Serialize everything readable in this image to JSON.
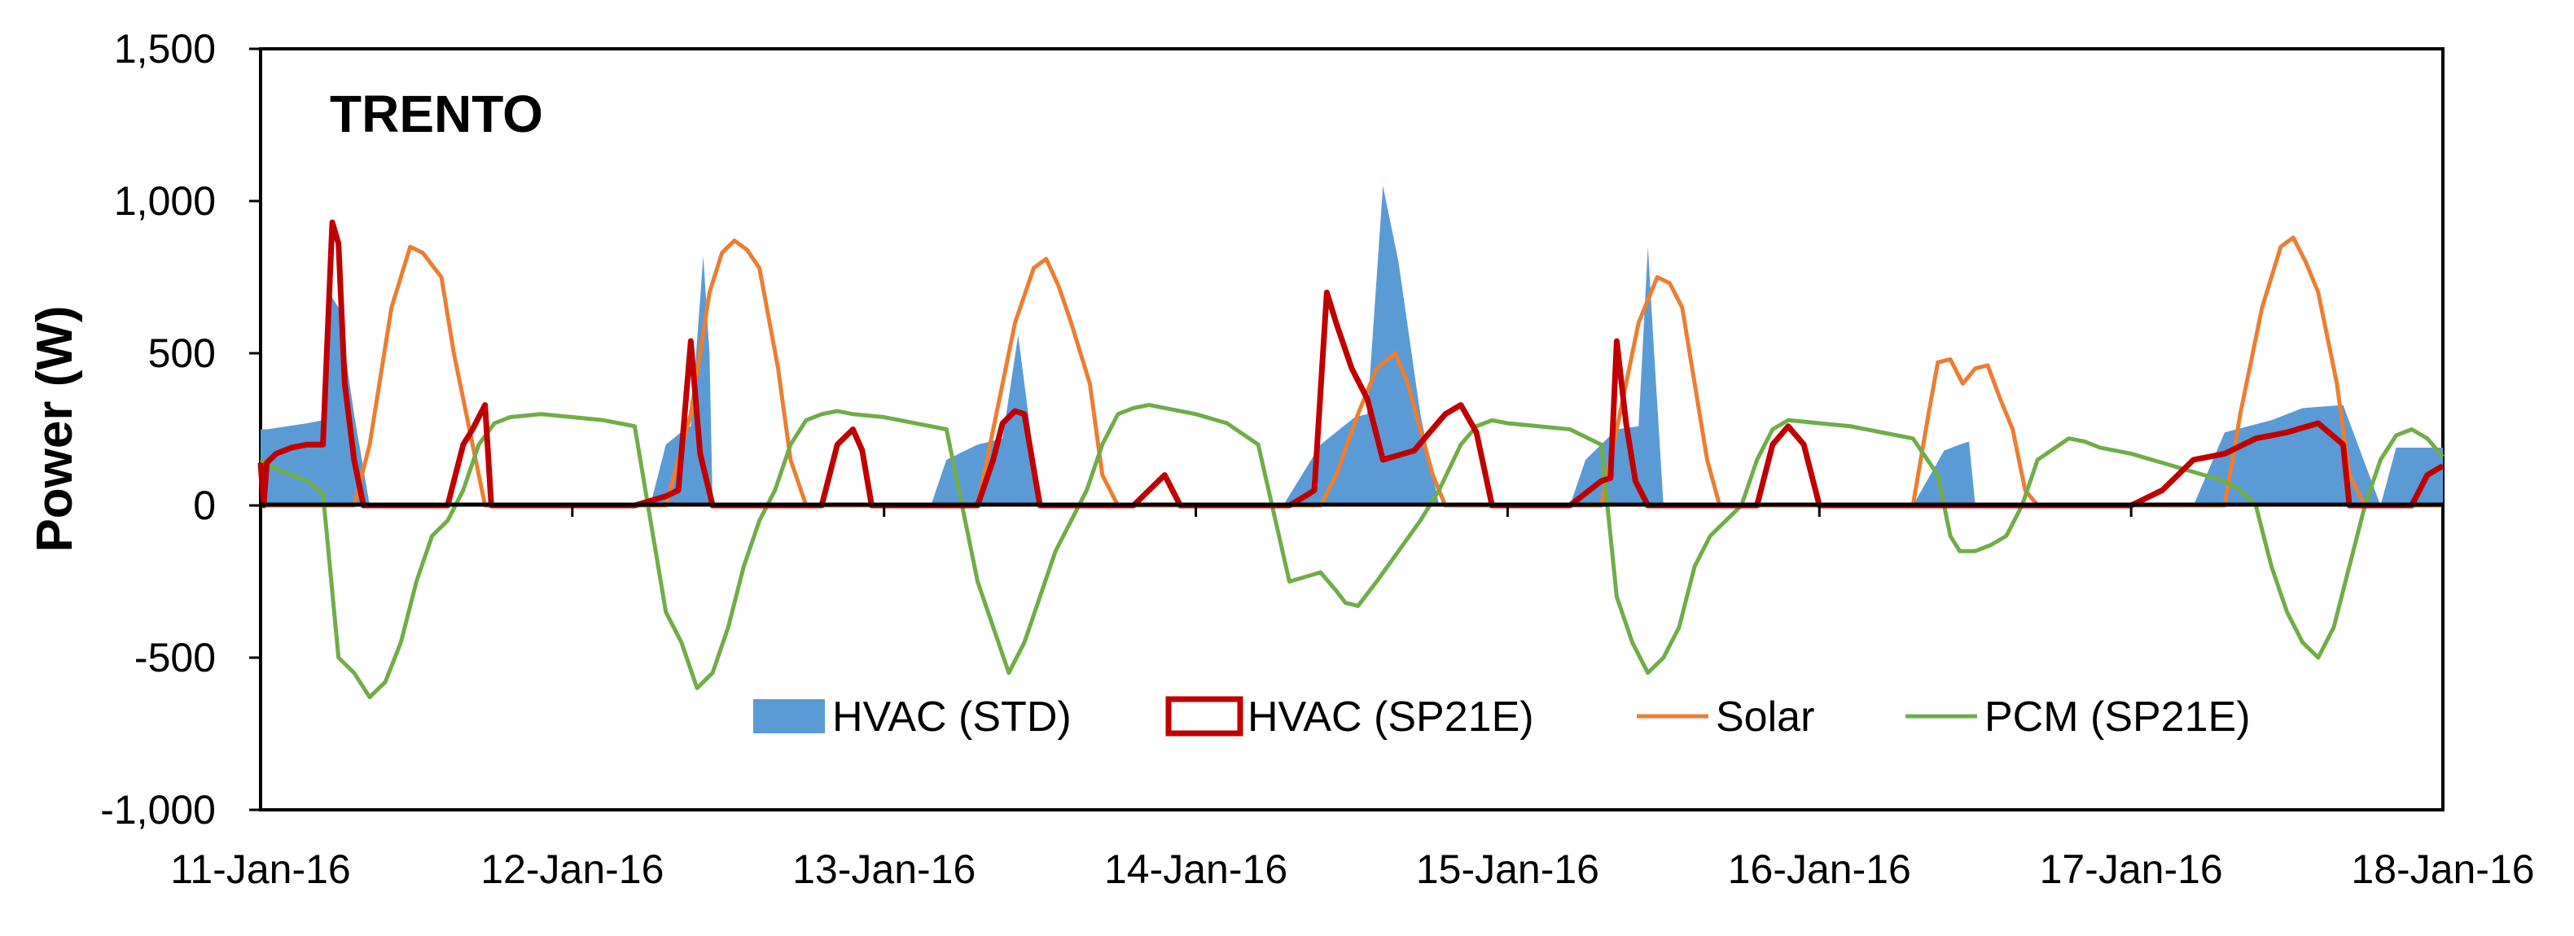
{
  "chart_data": {
    "type": "area+line",
    "title": "TRENTO",
    "xlabel": "",
    "ylabel": "Power (W)",
    "ylim": [
      -1000,
      1500
    ],
    "yticks": [
      -1000,
      -500,
      0,
      500,
      1000,
      1500
    ],
    "ytick_labels": [
      "-1,000",
      "-500",
      "0",
      "500",
      "1,000",
      "1,500"
    ],
    "xlim": [
      0,
      7
    ],
    "xticks": [
      0,
      1,
      2,
      3,
      4,
      5,
      6,
      7
    ],
    "xtick_labels": [
      "11-Jan-16",
      "12-Jan-16",
      "13-Jan-16",
      "14-Jan-16",
      "15-Jan-16",
      "16-Jan-16",
      "17-Jan-16",
      "18-Jan-16"
    ],
    "x_unit": "days since 11-Jan-16",
    "grid": false,
    "legend_position": "bottom-center",
    "colors": {
      "hvac_std_fill": "#5b9bd5",
      "hvac_std_light": "#a9cbe9",
      "hvac_sp21e": "#c00000",
      "solar": "#ed7d31",
      "pcm": "#70ad47",
      "zero_line": "#000000"
    },
    "series": [
      {
        "name": "HVAC (STD)",
        "style": "filled-area",
        "x": [
          0,
          0.02,
          0.15,
          0.2,
          0.22,
          0.25,
          0.3,
          0.35,
          0.42,
          0.44,
          0.46,
          0.8,
          1.08,
          1.25,
          1.3,
          1.36,
          1.38,
          1.42,
          1.44,
          1.45,
          1.5,
          1.78,
          1.82,
          2.05,
          2.15,
          2.2,
          2.3,
          2.38,
          2.43,
          2.5,
          2.8,
          3.02,
          3.2,
          3.28,
          3.4,
          3.51,
          3.55,
          3.6,
          3.65,
          3.72,
          3.78,
          3.8,
          4.02,
          4.2,
          4.25,
          4.35,
          4.42,
          4.45,
          4.47,
          4.5,
          4.75,
          5.02,
          5.25,
          5.3,
          5.4,
          5.45,
          5.48,
          5.5,
          5.8,
          6.02,
          6.08,
          6.2,
          6.3,
          6.45,
          6.55,
          6.68,
          6.8,
          6.85,
          7.0
        ],
        "values": [
          250,
          250,
          270,
          280,
          700,
          650,
          300,
          0,
          0,
          0,
          0,
          0,
          0,
          0,
          200,
          250,
          260,
          820,
          500,
          0,
          0,
          0,
          0,
          0,
          0,
          150,
          200,
          220,
          560,
          0,
          0,
          0,
          0,
          0,
          200,
          290,
          300,
          1050,
          800,
          300,
          0,
          0,
          0,
          0,
          150,
          250,
          260,
          850,
          500,
          0,
          0,
          0,
          0,
          0,
          180,
          200,
          210,
          0,
          0,
          0,
          0,
          0,
          240,
          280,
          320,
          330,
          0,
          190,
          190
        ]
      },
      {
        "name": "HVAC (SP21E)",
        "style": "line",
        "x": [
          0,
          0.01,
          0.02,
          0.05,
          0.1,
          0.15,
          0.2,
          0.23,
          0.25,
          0.27,
          0.3,
          0.33,
          0.35,
          0.4,
          0.6,
          0.65,
          0.68,
          0.72,
          0.74,
          0.8,
          1.0,
          1.2,
          1.3,
          1.34,
          1.38,
          1.41,
          1.45,
          1.5,
          1.8,
          1.85,
          1.9,
          1.93,
          1.96,
          2.0,
          2.3,
          2.35,
          2.38,
          2.42,
          2.45,
          2.5,
          2.7,
          2.8,
          2.85,
          2.9,
          2.95,
          3.0,
          3.2,
          3.3,
          3.35,
          3.38,
          3.42,
          3.45,
          3.5,
          3.55,
          3.6,
          3.7,
          3.8,
          3.85,
          3.9,
          3.95,
          4.0,
          4.05,
          4.1,
          4.2,
          4.3,
          4.33,
          4.35,
          4.38,
          4.41,
          4.45,
          4.5,
          4.8,
          4.85,
          4.9,
          4.95,
          5.0,
          5.5,
          6.0,
          6.1,
          6.2,
          6.3,
          6.4,
          6.5,
          6.6,
          6.68,
          6.7,
          6.9,
          6.95,
          7.0
        ],
        "values": [
          140,
          0,
          140,
          170,
          190,
          200,
          200,
          930,
          860,
          400,
          150,
          0,
          0,
          0,
          0,
          200,
          250,
          330,
          0,
          0,
          0,
          0,
          30,
          50,
          540,
          170,
          0,
          0,
          0,
          200,
          250,
          180,
          0,
          0,
          0,
          150,
          270,
          310,
          300,
          0,
          0,
          0,
          50,
          100,
          0,
          0,
          0,
          0,
          30,
          50,
          700,
          600,
          450,
          350,
          150,
          180,
          300,
          330,
          240,
          0,
          0,
          0,
          0,
          0,
          80,
          90,
          540,
          270,
          80,
          0,
          0,
          0,
          200,
          260,
          200,
          0,
          0,
          0,
          50,
          150,
          170,
          220,
          240,
          270,
          200,
          0,
          0,
          100,
          130
        ]
      },
      {
        "name": "Solar",
        "style": "line",
        "x": [
          0,
          0.3,
          0.35,
          0.42,
          0.48,
          0.52,
          0.58,
          0.62,
          0.68,
          0.72,
          0.75,
          1.0,
          1.3,
          1.38,
          1.44,
          1.48,
          1.52,
          1.56,
          1.6,
          1.66,
          1.7,
          1.75,
          2.0,
          2.3,
          2.35,
          2.42,
          2.48,
          2.52,
          2.56,
          2.6,
          2.66,
          2.7,
          2.75,
          3.0,
          3.4,
          3.45,
          3.52,
          3.58,
          3.64,
          3.68,
          3.72,
          3.76,
          3.8,
          4.0,
          4.3,
          4.35,
          4.42,
          4.48,
          4.52,
          4.56,
          4.6,
          4.64,
          4.68,
          4.72,
          5.0,
          5.3,
          5.35,
          5.38,
          5.42,
          5.46,
          5.5,
          5.54,
          5.58,
          5.62,
          5.66,
          5.7,
          6.0,
          6.3,
          6.35,
          6.42,
          6.48,
          6.52,
          6.56,
          6.6,
          6.66,
          6.7,
          6.75,
          7.0
        ],
        "values": [
          0,
          0,
          200,
          650,
          850,
          830,
          750,
          500,
          200,
          0,
          0,
          0,
          0,
          300,
          700,
          830,
          870,
          840,
          780,
          450,
          150,
          0,
          0,
          0,
          250,
          600,
          780,
          810,
          720,
          600,
          400,
          100,
          0,
          0,
          0,
          100,
          300,
          450,
          500,
          400,
          250,
          100,
          0,
          0,
          0,
          250,
          600,
          750,
          730,
          650,
          400,
          150,
          0,
          0,
          0,
          0,
          300,
          470,
          480,
          400,
          450,
          460,
          350,
          250,
          50,
          0,
          0,
          0,
          300,
          650,
          850,
          880,
          800,
          700,
          400,
          100,
          0,
          0
        ]
      },
      {
        "name": "PCM (SP21E)",
        "style": "line",
        "x": [
          0,
          0.05,
          0.1,
          0.15,
          0.2,
          0.25,
          0.3,
          0.35,
          0.4,
          0.45,
          0.5,
          0.55,
          0.6,
          0.65,
          0.7,
          0.75,
          0.8,
          0.85,
          0.9,
          1.0,
          1.1,
          1.2,
          1.3,
          1.35,
          1.4,
          1.45,
          1.5,
          1.55,
          1.6,
          1.65,
          1.7,
          1.75,
          1.8,
          1.85,
          1.9,
          2.0,
          2.2,
          2.3,
          2.4,
          2.45,
          2.5,
          2.55,
          2.6,
          2.65,
          2.7,
          2.75,
          2.8,
          2.85,
          2.9,
          3.0,
          3.1,
          3.2,
          3.3,
          3.4,
          3.45,
          3.48,
          3.52,
          3.58,
          3.65,
          3.72,
          3.78,
          3.85,
          3.9,
          3.95,
          4.0,
          4.1,
          4.2,
          4.3,
          4.35,
          4.4,
          4.45,
          4.5,
          4.55,
          4.6,
          4.65,
          4.7,
          4.75,
          4.8,
          4.85,
          4.9,
          5.0,
          5.1,
          5.2,
          5.3,
          5.38,
          5.42,
          5.45,
          5.5,
          5.55,
          5.6,
          5.65,
          5.7,
          5.8,
          5.85,
          5.9,
          6.0,
          6.1,
          6.2,
          6.3,
          6.35,
          6.4,
          6.45,
          6.5,
          6.55,
          6.6,
          6.65,
          6.7,
          6.75,
          6.8,
          6.85,
          6.9,
          6.95,
          7.0
        ],
        "values": [
          150,
          120,
          100,
          80,
          40,
          -500,
          -550,
          -630,
          -580,
          -450,
          -250,
          -100,
          -50,
          50,
          200,
          270,
          290,
          295,
          300,
          290,
          280,
          260,
          -350,
          -450,
          -600,
          -550,
          -400,
          -200,
          -50,
          50,
          200,
          280,
          300,
          310,
          300,
          290,
          250,
          -250,
          -550,
          -450,
          -300,
          -150,
          -50,
          50,
          200,
          300,
          320,
          330,
          320,
          300,
          270,
          200,
          -250,
          -220,
          -280,
          -320,
          -330,
          -250,
          -150,
          -50,
          50,
          200,
          260,
          280,
          270,
          260,
          250,
          200,
          -300,
          -450,
          -550,
          -500,
          -400,
          -200,
          -100,
          -50,
          0,
          150,
          250,
          280,
          270,
          260,
          240,
          220,
          100,
          -100,
          -150,
          -150,
          -130,
          -100,
          0,
          150,
          220,
          210,
          190,
          170,
          140,
          110,
          80,
          50,
          0,
          -200,
          -350,
          -450,
          -500,
          -400,
          -200,
          0,
          150,
          230,
          250,
          220,
          160
        ]
      }
    ]
  }
}
